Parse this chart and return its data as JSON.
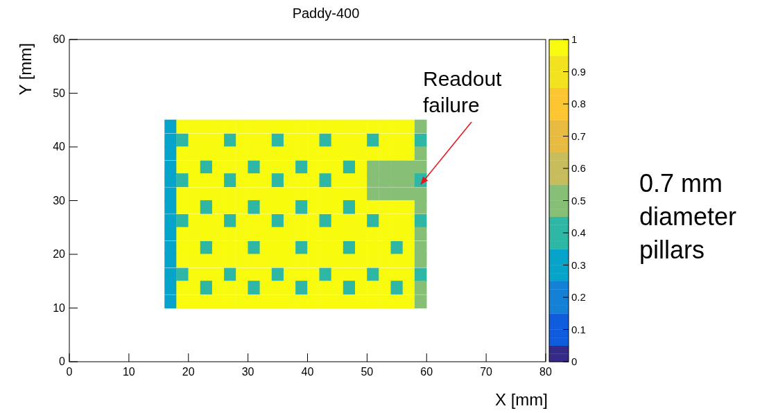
{
  "chart_data": {
    "type": "scatter",
    "title": "Paddy-400",
    "xlabel": "X [mm]",
    "ylabel": "Y [mm]",
    "marker": "square",
    "x": [
      17,
      19,
      21,
      23,
      25,
      27,
      29,
      31,
      33,
      35,
      37,
      39,
      41,
      43,
      45,
      47,
      49,
      51,
      53,
      55,
      57,
      59
    ],
    "xlim": [
      0,
      80
    ],
    "xticks": [
      0,
      10,
      20,
      30,
      40,
      50,
      60,
      70,
      80
    ],
    "ylim": [
      0,
      60
    ],
    "yticks": [
      0,
      10,
      20,
      30,
      40,
      50,
      60
    ],
    "clim": [
      0,
      1
    ],
    "cticks": [
      0,
      0.1,
      0.2,
      0.3,
      0.4,
      0.5,
      0.6,
      0.7,
      0.8,
      0.9,
      1
    ],
    "annotations": [
      {
        "text": "Readout failure",
        "x": 59,
        "y": 33
      },
      "0.7 mm diameter pillars"
    ],
    "series": [
      {
        "values": [
          43.8,
          43.8,
          43.8,
          43.8,
          43.8,
          43.8,
          43.8,
          43.8,
          43.8,
          43.8,
          43.8,
          43.8,
          43.8,
          43.8,
          43.8,
          43.8,
          43.8,
          43.8,
          43.8,
          43.8,
          43.8,
          43.8
        ],
        "colors": [
          "#06a4ca",
          "#f9fb0e",
          "#f9fb0e",
          "#f9fb0e",
          "#f9fb0e",
          "#f9fb0e",
          "#f9fb0e",
          "#f9fb0e",
          "#f9fb0e",
          "#f9fb0e",
          "#f9fb0e",
          "#f9fb0e",
          "#f9fb0e",
          "#f9fb0e",
          "#f9fb0e",
          "#f9fb0e",
          "#f9fb0e",
          "#f9fb0e",
          "#f9fb0e",
          "#f9fb0e",
          "#f9fb0e",
          "#87bf77"
        ]
      },
      {
        "values": [
          41.2,
          41.2,
          41.2,
          41.2,
          41.2,
          41.2,
          41.2,
          41.2,
          41.2,
          41.2,
          41.2,
          41.2,
          41.2,
          41.2,
          41.2,
          41.2,
          41.2,
          41.2,
          41.2,
          41.2,
          41.2,
          41.2
        ],
        "colors": [
          "#06a4ca",
          "#2eb7a4",
          "#f9fb0e",
          "#f9fb0e",
          "#f9fb0e",
          "#2eb7a4",
          "#f9fb0e",
          "#f9fb0e",
          "#f9fb0e",
          "#2eb7a4",
          "#f9fb0e",
          "#f9fb0e",
          "#f9fb0e",
          "#2eb7a4",
          "#f9fb0e",
          "#f9fb0e",
          "#f9fb0e",
          "#2eb7a4",
          "#f9fb0e",
          "#f9fb0e",
          "#f9fb0e",
          "#2eb7a4"
        ]
      },
      {
        "values": [
          38.8,
          38.8,
          38.8,
          38.8,
          38.8,
          38.8,
          38.8,
          38.8,
          38.8,
          38.8,
          38.8,
          38.8,
          38.8,
          38.8,
          38.8,
          38.8,
          38.8,
          38.8,
          38.8,
          38.8,
          38.8,
          38.8
        ],
        "colors": [
          "#06a4ca",
          "#f9fb0e",
          "#f9fb0e",
          "#f9fb0e",
          "#f9fb0e",
          "#f9fb0e",
          "#f9fb0e",
          "#f9fb0e",
          "#f9fb0e",
          "#f9fb0e",
          "#f9fb0e",
          "#f9fb0e",
          "#f9fb0e",
          "#f9fb0e",
          "#f9fb0e",
          "#f9fb0e",
          "#f9fb0e",
          "#f9fb0e",
          "#f9fb0e",
          "#f9fb0e",
          "#f9fb0e",
          "#87bf77"
        ]
      },
      {
        "values": [
          36.2,
          36.2,
          36.2,
          36.2,
          36.2,
          36.2,
          36.2,
          36.2,
          36.2,
          36.2,
          36.2,
          36.2,
          36.2,
          36.2,
          36.2,
          36.2,
          36.2,
          36.2,
          36.2,
          36.2,
          36.2,
          36.2
        ],
        "colors": [
          "#06a4ca",
          "#f9fb0e",
          "#f9fb0e",
          "#2eb7a4",
          "#f9fb0e",
          "#f9fb0e",
          "#f9fb0e",
          "#2eb7a4",
          "#f9fb0e",
          "#f9fb0e",
          "#f9fb0e",
          "#2eb7a4",
          "#f9fb0e",
          "#f9fb0e",
          "#f9fb0e",
          "#2eb7a4",
          "#f9fb0e",
          "#87bf77",
          "#87bf77",
          "#87bf77",
          "#87bf77",
          "#87bf77"
        ]
      },
      {
        "values": [
          33.8,
          33.8,
          33.8,
          33.8,
          33.8,
          33.8,
          33.8,
          33.8,
          33.8,
          33.8,
          33.8,
          33.8,
          33.8,
          33.8,
          33.8,
          33.8,
          33.8,
          33.8,
          33.8,
          33.8,
          33.8,
          33.8
        ],
        "colors": [
          "#06a4ca",
          "#2eb7a4",
          "#f9fb0e",
          "#f9fb0e",
          "#f9fb0e",
          "#2eb7a4",
          "#f9fb0e",
          "#f9fb0e",
          "#f9fb0e",
          "#2eb7a4",
          "#f9fb0e",
          "#f9fb0e",
          "#f9fb0e",
          "#2eb7a4",
          "#f9fb0e",
          "#f9fb0e",
          "#f9fb0e",
          "#87bf77",
          "#87bf77",
          "#87bf77",
          "#87bf77",
          "#2eb7a4"
        ]
      },
      {
        "values": [
          31.2,
          31.2,
          31.2,
          31.2,
          31.2,
          31.2,
          31.2,
          31.2,
          31.2,
          31.2,
          31.2,
          31.2,
          31.2,
          31.2,
          31.2,
          31.2,
          31.2,
          31.2,
          31.2,
          31.2,
          31.2,
          31.2
        ],
        "colors": [
          "#06a4ca",
          "#f9fb0e",
          "#f9fb0e",
          "#f9fb0e",
          "#f9fb0e",
          "#f9fb0e",
          "#f9fb0e",
          "#f9fb0e",
          "#f9fb0e",
          "#f9fb0e",
          "#f9fb0e",
          "#f9fb0e",
          "#f9fb0e",
          "#f9fb0e",
          "#f9fb0e",
          "#f9fb0e",
          "#f9fb0e",
          "#87bf77",
          "#87bf77",
          "#87bf77",
          "#87bf77",
          "#87bf77"
        ]
      },
      {
        "values": [
          28.8,
          28.8,
          28.8,
          28.8,
          28.8,
          28.8,
          28.8,
          28.8,
          28.8,
          28.8,
          28.8,
          28.8,
          28.8,
          28.8,
          28.8,
          28.8,
          28.8,
          28.8,
          28.8,
          28.8,
          28.8,
          28.8
        ],
        "colors": [
          "#06a4ca",
          "#f9fb0e",
          "#f9fb0e",
          "#2eb7a4",
          "#f9fb0e",
          "#f9fb0e",
          "#f9fb0e",
          "#2eb7a4",
          "#f9fb0e",
          "#f9fb0e",
          "#f9fb0e",
          "#2eb7a4",
          "#f9fb0e",
          "#f9fb0e",
          "#f9fb0e",
          "#2eb7a4",
          "#f9fb0e",
          "#f9fb0e",
          "#f9fb0e",
          "#f9fb0e",
          "#f9fb0e",
          "#87bf77"
        ]
      },
      {
        "values": [
          26.2,
          26.2,
          26.2,
          26.2,
          26.2,
          26.2,
          26.2,
          26.2,
          26.2,
          26.2,
          26.2,
          26.2,
          26.2,
          26.2,
          26.2,
          26.2,
          26.2,
          26.2,
          26.2,
          26.2,
          26.2,
          26.2
        ],
        "colors": [
          "#06a4ca",
          "#2eb7a4",
          "#f9fb0e",
          "#f9fb0e",
          "#f9fb0e",
          "#2eb7a4",
          "#f9fb0e",
          "#f9fb0e",
          "#f9fb0e",
          "#2eb7a4",
          "#f9fb0e",
          "#f9fb0e",
          "#f9fb0e",
          "#2eb7a4",
          "#f9fb0e",
          "#f9fb0e",
          "#f9fb0e",
          "#2eb7a4",
          "#f9fb0e",
          "#f9fb0e",
          "#f9fb0e",
          "#2eb7a4"
        ]
      },
      {
        "values": [
          23.8,
          23.8,
          23.8,
          23.8,
          23.8,
          23.8,
          23.8,
          23.8,
          23.8,
          23.8,
          23.8,
          23.8,
          23.8,
          23.8,
          23.8,
          23.8,
          23.8,
          23.8,
          23.8,
          23.8,
          23.8,
          23.8
        ],
        "colors": [
          "#06a4ca",
          "#f9fb0e",
          "#f9fb0e",
          "#f9fb0e",
          "#f9fb0e",
          "#f9fb0e",
          "#f9fb0e",
          "#f9fb0e",
          "#f9fb0e",
          "#f9fb0e",
          "#f9fb0e",
          "#f9fb0e",
          "#f9fb0e",
          "#f9fb0e",
          "#f9fb0e",
          "#f9fb0e",
          "#f9fb0e",
          "#f9fb0e",
          "#f9fb0e",
          "#f9fb0e",
          "#f9fb0e",
          "#87bf77"
        ]
      },
      {
        "values": [
          21.2,
          21.2,
          21.2,
          21.2,
          21.2,
          21.2,
          21.2,
          21.2,
          21.2,
          21.2,
          21.2,
          21.2,
          21.2,
          21.2,
          21.2,
          21.2,
          21.2,
          21.2,
          21.2,
          21.2,
          21.2,
          21.2
        ],
        "colors": [
          "#06a4ca",
          "#f9fb0e",
          "#f9fb0e",
          "#2eb7a4",
          "#f9fb0e",
          "#f9fb0e",
          "#f9fb0e",
          "#2eb7a4",
          "#f9fb0e",
          "#f9fb0e",
          "#f9fb0e",
          "#2eb7a4",
          "#f9fb0e",
          "#f9fb0e",
          "#f9fb0e",
          "#2eb7a4",
          "#f9fb0e",
          "#f9fb0e",
          "#f9fb0e",
          "#2eb7a4",
          "#f9fb0e",
          "#87bf77"
        ]
      },
      {
        "values": [
          18.8,
          18.8,
          18.8,
          18.8,
          18.8,
          18.8,
          18.8,
          18.8,
          18.8,
          18.8,
          18.8,
          18.8,
          18.8,
          18.8,
          18.8,
          18.8,
          18.8,
          18.8,
          18.8,
          18.8,
          18.8,
          18.8
        ],
        "colors": [
          "#06a4ca",
          "#f9fb0e",
          "#f9fb0e",
          "#f9fb0e",
          "#f9fb0e",
          "#f9fb0e",
          "#f9fb0e",
          "#f9fb0e",
          "#f9fb0e",
          "#f9fb0e",
          "#f9fb0e",
          "#f9fb0e",
          "#f9fb0e",
          "#f9fb0e",
          "#f9fb0e",
          "#f9fb0e",
          "#f9fb0e",
          "#f9fb0e",
          "#f9fb0e",
          "#f9fb0e",
          "#f9fb0e",
          "#87bf77"
        ]
      },
      {
        "values": [
          16.2,
          16.2,
          16.2,
          16.2,
          16.2,
          16.2,
          16.2,
          16.2,
          16.2,
          16.2,
          16.2,
          16.2,
          16.2,
          16.2,
          16.2,
          16.2,
          16.2,
          16.2,
          16.2,
          16.2,
          16.2,
          16.2
        ],
        "colors": [
          "#06a4ca",
          "#2eb7a4",
          "#f9fb0e",
          "#f9fb0e",
          "#f9fb0e",
          "#2eb7a4",
          "#f9fb0e",
          "#f9fb0e",
          "#f9fb0e",
          "#2eb7a4",
          "#f9fb0e",
          "#f9fb0e",
          "#f9fb0e",
          "#2eb7a4",
          "#f9fb0e",
          "#f9fb0e",
          "#f9fb0e",
          "#2eb7a4",
          "#f9fb0e",
          "#f9fb0e",
          "#f9fb0e",
          "#2eb7a4"
        ]
      },
      {
        "values": [
          13.8,
          13.8,
          13.8,
          13.8,
          13.8,
          13.8,
          13.8,
          13.8,
          13.8,
          13.8,
          13.8,
          13.8,
          13.8,
          13.8,
          13.8,
          13.8,
          13.8,
          13.8,
          13.8,
          13.8,
          13.8,
          13.8
        ],
        "colors": [
          "#06a4ca",
          "#f9fb0e",
          "#f9fb0e",
          "#2eb7a4",
          "#f9fb0e",
          "#f9fb0e",
          "#f9fb0e",
          "#2eb7a4",
          "#f9fb0e",
          "#f9fb0e",
          "#f9fb0e",
          "#2eb7a4",
          "#f9fb0e",
          "#f9fb0e",
          "#f9fb0e",
          "#2eb7a4",
          "#f9fb0e",
          "#f9fb0e",
          "#f9fb0e",
          "#2eb7a4",
          "#f9fb0e",
          "#87bf77"
        ]
      },
      {
        "values": [
          11.2,
          11.2,
          11.2,
          11.2,
          11.2,
          11.2,
          11.2,
          11.2,
          11.2,
          11.2,
          11.2,
          11.2,
          11.2,
          11.2,
          11.2,
          11.2,
          11.2,
          11.2,
          11.2,
          11.2,
          11.2,
          11.2
        ],
        "colors": [
          "#06a4ca",
          "#f9fb0e",
          "#f9fb0e",
          "#f9fb0e",
          "#f9fb0e",
          "#f9fb0e",
          "#f9fb0e",
          "#f9fb0e",
          "#f9fb0e",
          "#f9fb0e",
          "#f9fb0e",
          "#f9fb0e",
          "#f9fb0e",
          "#f9fb0e",
          "#f9fb0e",
          "#f9fb0e",
          "#f9fb0e",
          "#f9fb0e",
          "#f9fb0e",
          "#f9fb0e",
          "#f9fb0e",
          "#87bf77"
        ]
      }
    ]
  }
}
